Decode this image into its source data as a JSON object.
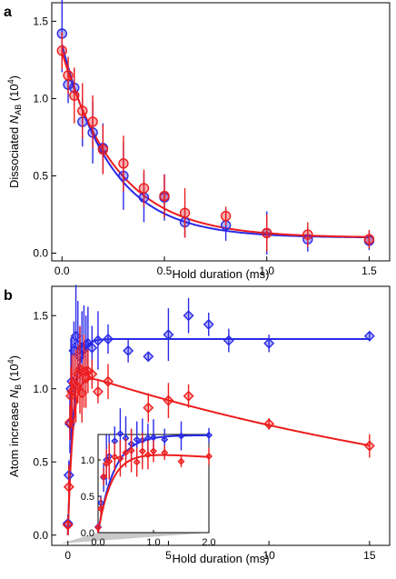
{
  "chart_data": [
    {
      "panel": "a",
      "type": "scatter",
      "xlabel": "Hold duration (ms)",
      "ylabel": "Dissociated N_AB (10^4)",
      "ylabel_parts": {
        "prefix": "Dissociated ",
        "symbol": "N",
        "sub": "AB",
        "unit_open": " (10",
        "sup": "4",
        "unit_close": ")"
      },
      "xlim": [
        -0.05,
        1.6
      ],
      "ylim": [
        -0.05,
        1.62
      ],
      "xticks": [
        0,
        0.5,
        1,
        1.5
      ],
      "xtick_labels": [
        "0.0",
        "0.5",
        "1.0",
        "1.5"
      ],
      "yticks": [
        0,
        0.5,
        1,
        1.5
      ],
      "ytick_labels": [
        "0.0",
        "0.5",
        "1.0",
        "1.5"
      ],
      "series": [
        {
          "color": "#2a2ae8",
          "marker": "circle",
          "x": [
            0,
            0.03,
            0.06,
            0.1,
            0.15,
            0.2,
            0.3,
            0.4,
            0.5,
            0.6,
            0.8,
            1.0,
            1.2,
            1.5
          ],
          "y": [
            1.42,
            1.09,
            1.07,
            0.85,
            0.78,
            0.68,
            0.5,
            0.36,
            0.36,
            0.2,
            0.18,
            0.13,
            0.09,
            0.08
          ],
          "err": [
            0.25,
            0.12,
            0.12,
            0.16,
            0.2,
            0.16,
            0.22,
            0.16,
            0.15,
            0.1,
            0.1,
            0.14,
            0.08,
            0.06
          ],
          "fit": {
            "a": 1.25,
            "tau": 0.24,
            "c": 0.1
          }
        },
        {
          "color": "#ee1c1c",
          "marker": "circle",
          "x": [
            0,
            0.03,
            0.06,
            0.1,
            0.15,
            0.2,
            0.3,
            0.4,
            0.5,
            0.6,
            0.8,
            1.0,
            1.2,
            1.5
          ],
          "y": [
            1.31,
            1.15,
            1.02,
            0.92,
            0.85,
            0.67,
            0.58,
            0.42,
            0.37,
            0.26,
            0.24,
            0.13,
            0.12,
            0.09
          ],
          "err": [
            0.12,
            0.12,
            0.18,
            0.18,
            0.17,
            0.16,
            0.18,
            0.12,
            0.14,
            0.16,
            0.06,
            0.12,
            0.08,
            0.06
          ],
          "fit": {
            "a": 1.2,
            "tau": 0.27,
            "c": 0.1
          }
        }
      ]
    },
    {
      "panel": "b",
      "type": "scatter",
      "xlabel": "Hold duration (ms)",
      "ylabel": "Atom increase N_B (10^4)",
      "ylabel_parts": {
        "prefix": "Atom increase ",
        "symbol": "N",
        "sub": "B",
        "unit_open": " (10",
        "sup": "4",
        "unit_close": ")"
      },
      "xlim": [
        -0.8,
        16.0
      ],
      "ylim": [
        -0.07,
        1.7
      ],
      "xticks": [
        0,
        5,
        10,
        15
      ],
      "xtick_labels": [
        "0",
        "5",
        "10",
        "15"
      ],
      "yticks": [
        0,
        0.5,
        1,
        1.5
      ],
      "ytick_labels": [
        "0.0",
        "0.5",
        "1.0",
        "1.5"
      ],
      "series": [
        {
          "color": "#2a2ae8",
          "marker": "diamond",
          "x": [
            0,
            0.05,
            0.1,
            0.15,
            0.2,
            0.3,
            0.4,
            0.5,
            0.6,
            0.7,
            0.8,
            0.9,
            1.0,
            1.2,
            1.5,
            2.0,
            3.0,
            4.0,
            5.0,
            6.0,
            7.0,
            8.0,
            10.0,
            15.0
          ],
          "y": [
            0.08,
            0.41,
            0.76,
            1.0,
            1.05,
            1.26,
            1.36,
            1.3,
            1.22,
            1.28,
            1.27,
            1.3,
            1.31,
            1.28,
            1.33,
            1.34,
            1.26,
            1.22,
            1.37,
            1.5,
            1.44,
            1.33,
            1.31,
            1.36
          ],
          "err": [
            0.06,
            0.1,
            0.2,
            0.35,
            0.3,
            0.2,
            0.35,
            0.3,
            0.2,
            0.25,
            0.3,
            0.2,
            0.25,
            0.15,
            0.2,
            0.1,
            0.08,
            0.03,
            0.18,
            0.12,
            0.08,
            0.08,
            0.06,
            0.03
          ],
          "fit": {
            "kind": "saturating",
            "a": 1.34,
            "k": 3.5
          }
        },
        {
          "color": "#ee1c1c",
          "marker": "diamond",
          "x": [
            0,
            0.05,
            0.1,
            0.15,
            0.2,
            0.3,
            0.4,
            0.5,
            0.6,
            0.7,
            0.8,
            0.9,
            1.0,
            1.2,
            1.5,
            2.0,
            4.0,
            5.0,
            6.0,
            10.0,
            15.0
          ],
          "y": [
            0.07,
            0.33,
            0.77,
            0.95,
            0.98,
            1.04,
            1.02,
            1.1,
            1.13,
            0.97,
            1.12,
            1.07,
            1.12,
            1.1,
            0.98,
            1.05,
            0.87,
            0.92,
            0.95,
            0.76,
            0.61
          ],
          "err": [
            0.06,
            0.15,
            0.12,
            0.2,
            0.25,
            0.2,
            0.25,
            0.2,
            0.3,
            0.2,
            0.25,
            0.2,
            0.15,
            0.1,
            0.08,
            0.12,
            0.1,
            0.12,
            0.08,
            0.04,
            0.08
          ],
          "fit": {
            "kind": "rise-decay",
            "a": 1.13,
            "k": 4.0,
            "decay": 0.0408
          }
        }
      ],
      "inset": {
        "xlim": [
          0,
          2.0
        ],
        "ylim": [
          0,
          1.35
        ],
        "xticks": [
          0,
          1,
          2
        ],
        "xtick_labels": [
          "0.0",
          "1.0",
          "2.0"
        ],
        "yticks": [
          0,
          0.5,
          1.0
        ],
        "ytick_labels": [
          "0.0",
          "0.5",
          "1.0"
        ]
      }
    }
  ],
  "labels": {
    "panel_a": "a",
    "panel_b": "b"
  }
}
